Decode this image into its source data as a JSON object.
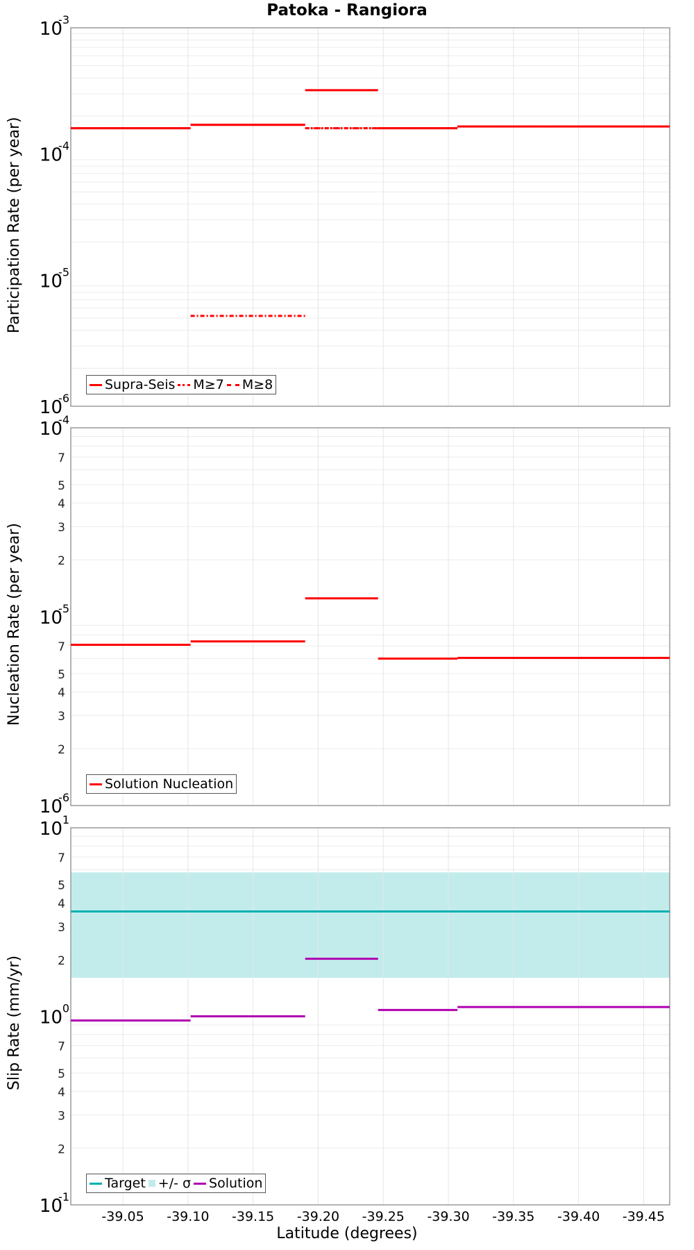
{
  "title": "Patoka - Rangiora",
  "xaxis": {
    "label": "Latitude (degrees)",
    "ticks": [
      "-39.05",
      "-39.10",
      "-39.15",
      "-39.20",
      "-39.25",
      "-39.30",
      "-39.35",
      "-39.40",
      "-39.45"
    ]
  },
  "panels": [
    {
      "ylabel": "Participation Rate (per year)",
      "ytick_major": [
        "10^-3",
        "10^-4",
        "10^-5",
        "10^-6"
      ],
      "legend": [
        "Supra-Seis",
        "M≥7",
        "M≥8"
      ]
    },
    {
      "ylabel": "Nucleation Rate (per year)",
      "ytick_major": [
        "10^-4",
        "10^-5",
        "10^-6"
      ],
      "ytick_minor": [
        "7",
        "5",
        "4",
        "3",
        "2"
      ],
      "legend": [
        "Solution Nucleation"
      ]
    },
    {
      "ylabel": "Slip Rate (mm/yr)",
      "ytick_major": [
        "10^1",
        "10^0",
        "10^-1"
      ],
      "ytick_minor": [
        "7",
        "5",
        "4",
        "3",
        "2"
      ],
      "legend": [
        "Target",
        "+/- σ",
        "Solution"
      ]
    }
  ],
  "colors": {
    "participation": "#ff0000",
    "target": "#00b0b0",
    "sigma_band": "#c2ecec",
    "solution": "#b000b0"
  },
  "chart_data": [
    {
      "type": "line",
      "title": "Patoka - Rangiora",
      "xlabel": "Latitude (degrees)",
      "ylabel": "Participation Rate (per year)",
      "yscale": "log",
      "ylim": [
        1e-06,
        0.001
      ],
      "xlim": [
        -39.01,
        -39.47
      ],
      "grid": true,
      "legend_position": "lower left",
      "series": [
        {
          "name": "Supra-Seis",
          "style": "solid",
          "segments": [
            {
              "x": [
                -39.01,
                -39.102
              ],
              "y": 0.00016
            },
            {
              "x": [
                -39.102,
                -39.19
              ],
              "y": 0.00017
            },
            {
              "x": [
                -39.19,
                -39.246
              ],
              "y": 0.00032
            },
            {
              "x": [
                -39.246,
                -39.307
              ],
              "y": 0.00016
            },
            {
              "x": [
                -39.307,
                -39.47
              ],
              "y": 0.000165
            }
          ]
        },
        {
          "name": "M≥7",
          "style": "dotted",
          "segments": [
            {
              "x": [
                -39.01,
                -39.102
              ],
              "y": 0.00016
            },
            {
              "x": [
                -39.102,
                -39.19
              ],
              "y": 0.00017
            },
            {
              "x": [
                -39.19,
                -39.246
              ],
              "y": 0.00016
            },
            {
              "x": [
                -39.246,
                -39.307
              ],
              "y": 0.00016
            },
            {
              "x": [
                -39.307,
                -39.47
              ],
              "y": 0.000165
            }
          ]
        },
        {
          "name": "M≥8",
          "style": "dashdot",
          "segments": [
            {
              "x": [
                -39.102,
                -39.19
              ],
              "y": 5.2e-06
            },
            {
              "x": [
                -39.19,
                -39.246
              ],
              "y": 0.00016
            }
          ]
        }
      ]
    },
    {
      "type": "line",
      "ylabel": "Nucleation Rate (per year)",
      "yscale": "log",
      "ylim": [
        1e-06,
        0.0001
      ],
      "xlim": [
        -39.01,
        -39.47
      ],
      "series": [
        {
          "name": "Solution Nucleation",
          "segments": [
            {
              "x": [
                -39.01,
                -39.102
              ],
              "y": 7.1e-06
            },
            {
              "x": [
                -39.102,
                -39.19
              ],
              "y": 7.4e-06
            },
            {
              "x": [
                -39.19,
                -39.246
              ],
              "y": 1.25e-05
            },
            {
              "x": [
                -39.246,
                -39.307
              ],
              "y": 6e-06
            },
            {
              "x": [
                -39.307,
                -39.47
              ],
              "y": 6.05e-06
            }
          ]
        }
      ]
    },
    {
      "type": "line",
      "ylabel": "Slip Rate (mm/yr)",
      "yscale": "log",
      "ylim": [
        0.1,
        10
      ],
      "xlim": [
        -39.01,
        -39.47
      ],
      "series": [
        {
          "name": "Target",
          "segments": [
            {
              "x": [
                -39.01,
                -39.47
              ],
              "y": 3.6
            }
          ]
        },
        {
          "name": "+/- σ",
          "type": "band",
          "x": [
            -39.01,
            -39.47
          ],
          "low": 1.6,
          "high": 5.8
        },
        {
          "name": "Solution",
          "segments": [
            {
              "x": [
                -39.01,
                -39.102
              ],
              "y": 0.95
            },
            {
              "x": [
                -39.102,
                -39.19
              ],
              "y": 1.0
            },
            {
              "x": [
                -39.19,
                -39.246
              ],
              "y": 2.02
            },
            {
              "x": [
                -39.246,
                -39.307
              ],
              "y": 1.08
            },
            {
              "x": [
                -39.307,
                -39.47
              ],
              "y": 1.12
            }
          ]
        }
      ]
    }
  ]
}
